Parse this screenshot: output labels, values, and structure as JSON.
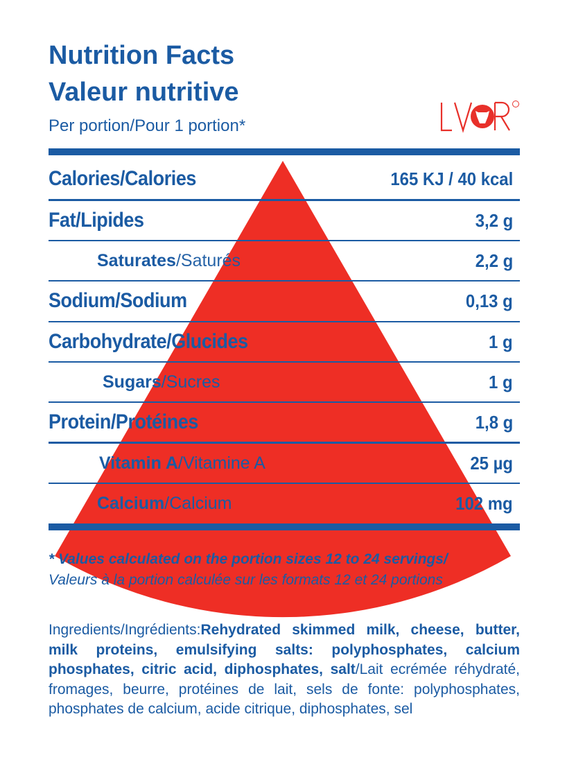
{
  "header": {
    "title_en": "Nutrition Facts",
    "title_fr": "Valeur nutritive",
    "per_en": "Per portion",
    "per_fr": "/Pour 1 portion*"
  },
  "logo": {
    "text": "LVQR",
    "color": "#e8302a"
  },
  "colors": {
    "text": "#1b5ba3",
    "wedge": "#ee2e25"
  },
  "rows": [
    {
      "label": "Calories/Calories",
      "value": "165 KJ / 40 kcal",
      "style": "main"
    },
    {
      "label": "Fat/Lipides",
      "value": "3,2 g",
      "style": "main"
    },
    {
      "label_en": "Saturates",
      "label_fr": "/Saturés",
      "value": "2,2 g",
      "style": "sub"
    },
    {
      "label": "Sodium/Sodium",
      "value": "0,13 g",
      "style": "main"
    },
    {
      "label": "Carbohydrate/Glucides",
      "value": "1 g",
      "style": "main"
    },
    {
      "label_en": "Sugars",
      "label_fr": "/Sucres",
      "value": "1 g",
      "style": "sub"
    },
    {
      "label": "Protein/Protéines",
      "value": "1,8 g",
      "style": "main"
    },
    {
      "label_en": "Vitamin A",
      "label_fr": "/Vitamine A",
      "value": "25 µg",
      "style": "sub"
    },
    {
      "label_en": "Calcium",
      "label_fr": "/Calcium",
      "value": "102 mg",
      "style": "sub"
    }
  ],
  "footnote": {
    "en": "* Values calculated on the portion sizes 12 to 24 servings/",
    "fr": "Valeurs à la portion calculée sur les formats 12 et 24 portions"
  },
  "ingredients": {
    "label_en": "Ingredients",
    "label_fr": "/Ingrédients:",
    "text_en": "Rehydrated skimmed milk, cheese, butter, milk proteins, emulsifying salts: polyphosphates, calcium phosphates, citric acid, diphosphates, salt",
    "text_fr": "/Lait ecrémée réhydraté, fromages, beurre, protéines de lait, sels de fonte: polyphosphates, phosphates de calcium, acide citrique, diphosphates, sel"
  }
}
